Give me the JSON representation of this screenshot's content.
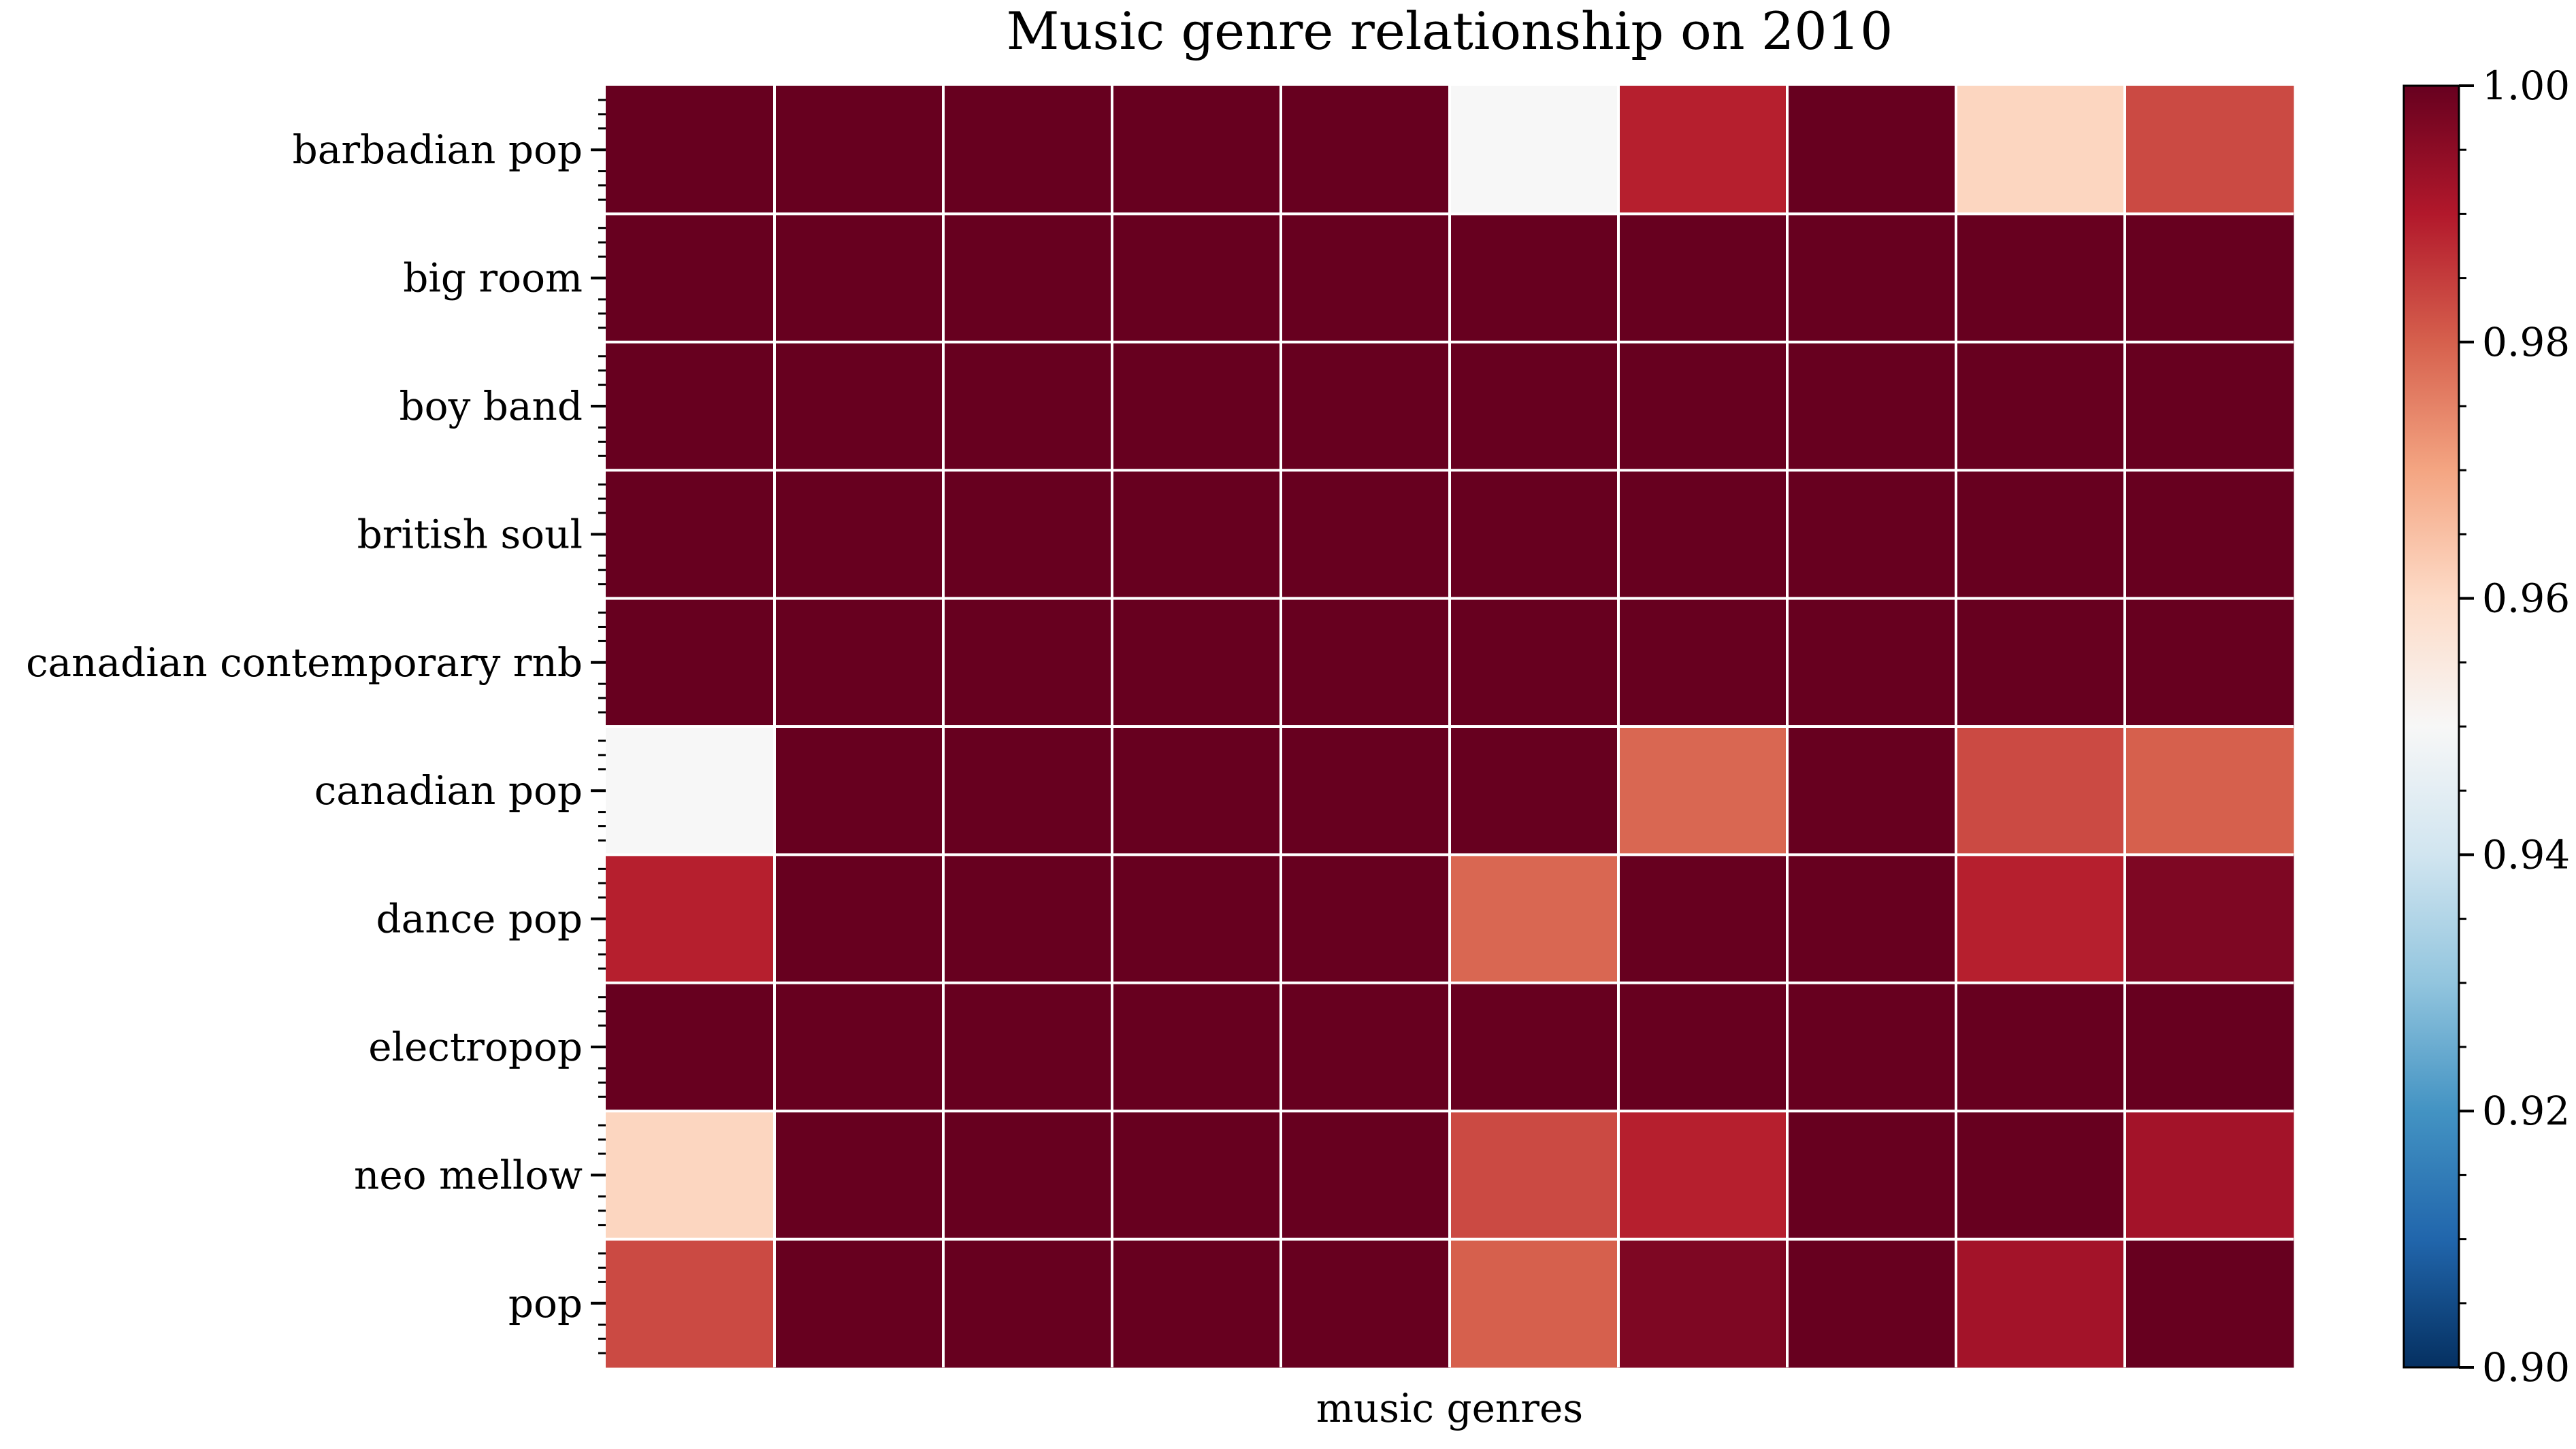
{
  "chart_data": {
    "type": "heatmap",
    "title": "Music genre relationship on 2010",
    "xlabel": "music genres",
    "ylabel": "",
    "x_tick_labels_visible": false,
    "rows": [
      "barbadian pop",
      "big room",
      "boy band",
      "british soul",
      "canadian contemporary rnb",
      "canadian pop",
      "dance pop",
      "electropop",
      "neo mellow",
      "pop"
    ],
    "values": [
      [
        1.0,
        1.0,
        1.0,
        1.0,
        1.0,
        0.95,
        0.989,
        1.0,
        0.961,
        0.983
      ],
      [
        1.0,
        1.0,
        1.0,
        1.0,
        1.0,
        1.0,
        1.0,
        1.0,
        1.0,
        1.0
      ],
      [
        1.0,
        1.0,
        1.0,
        1.0,
        1.0,
        1.0,
        1.0,
        1.0,
        1.0,
        1.0
      ],
      [
        1.0,
        1.0,
        1.0,
        1.0,
        1.0,
        1.0,
        1.0,
        1.0,
        1.0,
        1.0
      ],
      [
        1.0,
        1.0,
        1.0,
        1.0,
        1.0,
        1.0,
        1.0,
        1.0,
        1.0,
        1.0
      ],
      [
        0.95,
        1.0,
        1.0,
        1.0,
        1.0,
        1.0,
        0.979,
        1.0,
        0.983,
        0.98
      ],
      [
        0.989,
        1.0,
        1.0,
        1.0,
        1.0,
        0.979,
        1.0,
        1.0,
        0.989,
        0.997
      ],
      [
        1.0,
        1.0,
        1.0,
        1.0,
        1.0,
        1.0,
        1.0,
        1.0,
        1.0,
        1.0
      ],
      [
        0.961,
        1.0,
        1.0,
        1.0,
        1.0,
        0.983,
        0.989,
        1.0,
        1.0,
        0.992
      ],
      [
        0.983,
        1.0,
        1.0,
        1.0,
        1.0,
        0.98,
        0.997,
        1.0,
        0.992,
        1.0
      ]
    ],
    "colorbar": {
      "colormap": "RdBu_r",
      "vmin": 0.9,
      "vmax": 1.0,
      "tick_values": [
        0.9,
        0.92,
        0.94,
        0.96,
        0.98,
        1.0
      ],
      "tick_labels": [
        "0.90",
        "0.92",
        "0.94",
        "0.96",
        "0.98",
        "1.00"
      ]
    },
    "grid_line_color": "#ffffff",
    "colormap_stops": [
      "#053061",
      "#2166ac",
      "#4393c3",
      "#92c5de",
      "#d1e5f0",
      "#f7f7f7",
      "#fddbc7",
      "#f4a582",
      "#d6604d",
      "#b2182b",
      "#67001f"
    ]
  }
}
